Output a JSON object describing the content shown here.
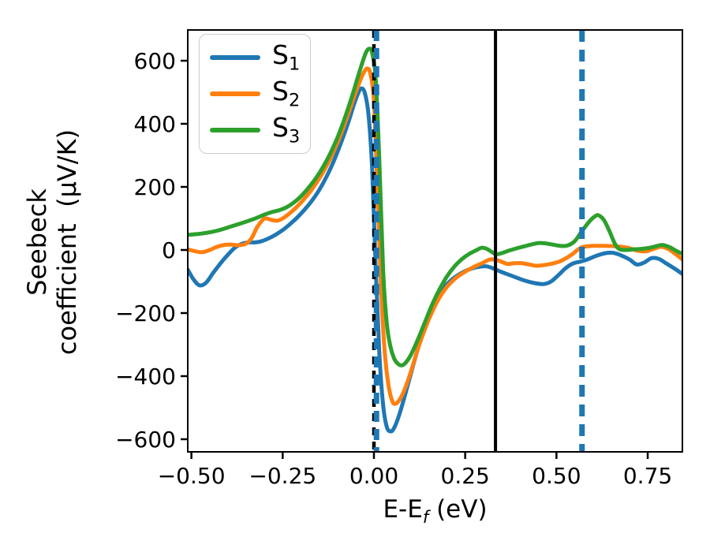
{
  "figure": {
    "ylabel_line1": "Seebeck",
    "ylabel_line2": "coefficient  (μV/K)",
    "xlabel_base": "E-E",
    "xlabel_sub": "f",
    "xlabel_unit": " (eV)"
  },
  "chart_data": {
    "type": "line",
    "title": "",
    "xlabel": "E-E_f (eV)",
    "ylabel": "Seebeck coefficient (μV/K)",
    "grid": false,
    "legend_position": "upper left",
    "xlim": [
      -0.51,
      0.845
    ],
    "ylim": [
      -640,
      697.5
    ],
    "x_ticks": {
      "values": [
        -0.5,
        -0.25,
        0.0,
        0.25,
        0.5,
        0.75
      ],
      "labels": [
        "−0.50",
        "−0.25",
        "0.00",
        "0.25",
        "0.50",
        "0.75"
      ]
    },
    "y_ticks": {
      "values": [
        -600,
        -400,
        -200,
        0,
        200,
        400,
        600
      ],
      "labels": [
        "−600",
        "−400",
        "−200",
        "0",
        "200",
        "400",
        "600"
      ]
    },
    "vlines": [
      {
        "x": 0.0,
        "color": "#000000",
        "style": "dashed",
        "width": 4.5,
        "dash": "10,8"
      },
      {
        "x": 0.007,
        "color": "#1f77b4",
        "style": "dashed",
        "width": 7,
        "dash": "14,9"
      },
      {
        "x": 0.333,
        "color": "#000000",
        "style": "solid",
        "width": 4,
        "dash": ""
      },
      {
        "x": 0.57,
        "color": "#1f77b4",
        "style": "dashed",
        "width": 7,
        "dash": "15,10"
      }
    ],
    "series": [
      {
        "name": "S1",
        "label_base": "S",
        "label_sub": "1",
        "color": "#1f77b4",
        "points": [
          [
            -0.51,
            -62
          ],
          [
            -0.495,
            -92
          ],
          [
            -0.478,
            -112
          ],
          [
            -0.46,
            -104
          ],
          [
            -0.44,
            -72
          ],
          [
            -0.42,
            -42
          ],
          [
            -0.4,
            -15
          ],
          [
            -0.38,
            8
          ],
          [
            -0.36,
            20
          ],
          [
            -0.34,
            24
          ],
          [
            -0.325,
            24
          ],
          [
            -0.31,
            27
          ],
          [
            -0.29,
            36
          ],
          [
            -0.27,
            48
          ],
          [
            -0.25,
            63
          ],
          [
            -0.23,
            82
          ],
          [
            -0.21,
            103
          ],
          [
            -0.19,
            128
          ],
          [
            -0.17,
            156
          ],
          [
            -0.15,
            190
          ],
          [
            -0.13,
            232
          ],
          [
            -0.11,
            282
          ],
          [
            -0.09,
            340
          ],
          [
            -0.07,
            405
          ],
          [
            -0.055,
            460
          ],
          [
            -0.045,
            492
          ],
          [
            -0.035,
            512
          ],
          [
            -0.025,
            498
          ],
          [
            -0.015,
            430
          ],
          [
            -0.005,
            260
          ],
          [
            0.005,
            -60
          ],
          [
            0.015,
            -330
          ],
          [
            0.025,
            -490
          ],
          [
            0.035,
            -560
          ],
          [
            0.045,
            -575
          ],
          [
            0.055,
            -565
          ],
          [
            0.07,
            -520
          ],
          [
            0.09,
            -440
          ],
          [
            0.11,
            -355
          ],
          [
            0.13,
            -275
          ],
          [
            0.15,
            -210
          ],
          [
            0.17,
            -158
          ],
          [
            0.19,
            -122
          ],
          [
            0.21,
            -97
          ],
          [
            0.23,
            -80
          ],
          [
            0.25,
            -67
          ],
          [
            0.27,
            -58
          ],
          [
            0.29,
            -53
          ],
          [
            0.31,
            -52
          ],
          [
            0.33,
            -60
          ],
          [
            0.35,
            -70
          ],
          [
            0.38,
            -83
          ],
          [
            0.41,
            -96
          ],
          [
            0.44,
            -105
          ],
          [
            0.465,
            -108
          ],
          [
            0.485,
            -100
          ],
          [
            0.505,
            -80
          ],
          [
            0.525,
            -58
          ],
          [
            0.545,
            -43
          ],
          [
            0.565,
            -37
          ],
          [
            0.585,
            -30
          ],
          [
            0.61,
            -18
          ],
          [
            0.635,
            -10
          ],
          [
            0.655,
            -9
          ],
          [
            0.675,
            -16
          ],
          [
            0.7,
            -30
          ],
          [
            0.72,
            -46
          ],
          [
            0.74,
            -40
          ],
          [
            0.76,
            -26
          ],
          [
            0.78,
            -28
          ],
          [
            0.8,
            -42
          ],
          [
            0.825,
            -60
          ],
          [
            0.845,
            -76
          ]
        ]
      },
      {
        "name": "S2",
        "label_base": "S",
        "label_sub": "2",
        "color": "#ff7f0e",
        "points": [
          [
            -0.51,
            2
          ],
          [
            -0.49,
            -4
          ],
          [
            -0.47,
            -7
          ],
          [
            -0.45,
            0
          ],
          [
            -0.43,
            10
          ],
          [
            -0.41,
            16
          ],
          [
            -0.39,
            17
          ],
          [
            -0.37,
            15
          ],
          [
            -0.35,
            20
          ],
          [
            -0.335,
            38
          ],
          [
            -0.32,
            72
          ],
          [
            -0.305,
            95
          ],
          [
            -0.295,
            100
          ],
          [
            -0.28,
            95
          ],
          [
            -0.265,
            93
          ],
          [
            -0.25,
            100
          ],
          [
            -0.23,
            117
          ],
          [
            -0.21,
            138
          ],
          [
            -0.19,
            163
          ],
          [
            -0.17,
            192
          ],
          [
            -0.15,
            226
          ],
          [
            -0.13,
            266
          ],
          [
            -0.11,
            313
          ],
          [
            -0.09,
            368
          ],
          [
            -0.07,
            432
          ],
          [
            -0.05,
            500
          ],
          [
            -0.035,
            545
          ],
          [
            -0.025,
            568
          ],
          [
            -0.018,
            575
          ],
          [
            -0.01,
            560
          ],
          [
            0.0,
            470
          ],
          [
            0.01,
            180
          ],
          [
            0.02,
            -130
          ],
          [
            0.03,
            -330
          ],
          [
            0.04,
            -430
          ],
          [
            0.05,
            -478
          ],
          [
            0.058,
            -488
          ],
          [
            0.07,
            -475
          ],
          [
            0.085,
            -440
          ],
          [
            0.1,
            -390
          ],
          [
            0.12,
            -315
          ],
          [
            0.14,
            -250
          ],
          [
            0.16,
            -195
          ],
          [
            0.18,
            -150
          ],
          [
            0.2,
            -117
          ],
          [
            0.22,
            -93
          ],
          [
            0.24,
            -76
          ],
          [
            0.26,
            -62
          ],
          [
            0.28,
            -50
          ],
          [
            0.3,
            -40
          ],
          [
            0.315,
            -31
          ],
          [
            0.33,
            -30
          ],
          [
            0.345,
            -35
          ],
          [
            0.365,
            -44
          ],
          [
            0.385,
            -42
          ],
          [
            0.405,
            -42
          ],
          [
            0.425,
            -46
          ],
          [
            0.445,
            -50
          ],
          [
            0.465,
            -48
          ],
          [
            0.485,
            -44
          ],
          [
            0.505,
            -38
          ],
          [
            0.525,
            -27
          ],
          [
            0.545,
            -12
          ],
          [
            0.56,
            2
          ],
          [
            0.575,
            10
          ],
          [
            0.6,
            13
          ],
          [
            0.63,
            13
          ],
          [
            0.66,
            12
          ],
          [
            0.685,
            9
          ],
          [
            0.705,
            4
          ],
          [
            0.725,
            -3
          ],
          [
            0.745,
            -4
          ],
          [
            0.765,
            3
          ],
          [
            0.785,
            10
          ],
          [
            0.805,
            4
          ],
          [
            0.825,
            -12
          ],
          [
            0.845,
            -30
          ]
        ]
      },
      {
        "name": "S3",
        "label_base": "S",
        "label_sub": "3",
        "color": "#2ca02c",
        "points": [
          [
            -0.51,
            48
          ],
          [
            -0.48,
            51
          ],
          [
            -0.45,
            56
          ],
          [
            -0.42,
            64
          ],
          [
            -0.39,
            75
          ],
          [
            -0.36,
            86
          ],
          [
            -0.33,
            98
          ],
          [
            -0.3,
            112
          ],
          [
            -0.28,
            120
          ],
          [
            -0.26,
            126
          ],
          [
            -0.24,
            135
          ],
          [
            -0.22,
            150
          ],
          [
            -0.2,
            170
          ],
          [
            -0.18,
            196
          ],
          [
            -0.16,
            226
          ],
          [
            -0.14,
            262
          ],
          [
            -0.12,
            305
          ],
          [
            -0.1,
            356
          ],
          [
            -0.08,
            418
          ],
          [
            -0.06,
            487
          ],
          [
            -0.045,
            545
          ],
          [
            -0.03,
            600
          ],
          [
            -0.02,
            630
          ],
          [
            -0.012,
            638
          ],
          [
            -0.005,
            625
          ],
          [
            0.005,
            540
          ],
          [
            0.015,
            280
          ],
          [
            0.025,
            -60
          ],
          [
            0.035,
            -230
          ],
          [
            0.045,
            -305
          ],
          [
            0.055,
            -343
          ],
          [
            0.065,
            -360
          ],
          [
            0.075,
            -366
          ],
          [
            0.085,
            -360
          ],
          [
            0.1,
            -335
          ],
          [
            0.12,
            -285
          ],
          [
            0.14,
            -228
          ],
          [
            0.16,
            -172
          ],
          [
            0.18,
            -124
          ],
          [
            0.2,
            -84
          ],
          [
            0.22,
            -53
          ],
          [
            0.24,
            -30
          ],
          [
            0.26,
            -13
          ],
          [
            0.28,
            -1
          ],
          [
            0.295,
            7
          ],
          [
            0.31,
            3
          ],
          [
            0.325,
            -8
          ],
          [
            0.335,
            -14
          ],
          [
            0.35,
            -10
          ],
          [
            0.37,
            -2
          ],
          [
            0.39,
            5
          ],
          [
            0.41,
            11
          ],
          [
            0.43,
            17
          ],
          [
            0.45,
            22
          ],
          [
            0.47,
            21
          ],
          [
            0.49,
            17
          ],
          [
            0.51,
            13
          ],
          [
            0.53,
            14
          ],
          [
            0.55,
            28
          ],
          [
            0.57,
            60
          ],
          [
            0.59,
            90
          ],
          [
            0.605,
            106
          ],
          [
            0.615,
            110
          ],
          [
            0.63,
            95
          ],
          [
            0.645,
            60
          ],
          [
            0.66,
            20
          ],
          [
            0.672,
            3
          ],
          [
            0.69,
            0
          ],
          [
            0.71,
            2
          ],
          [
            0.73,
            3
          ],
          [
            0.75,
            6
          ],
          [
            0.77,
            11
          ],
          [
            0.79,
            16
          ],
          [
            0.81,
            9
          ],
          [
            0.83,
            -4
          ],
          [
            0.845,
            -12
          ]
        ]
      }
    ]
  }
}
